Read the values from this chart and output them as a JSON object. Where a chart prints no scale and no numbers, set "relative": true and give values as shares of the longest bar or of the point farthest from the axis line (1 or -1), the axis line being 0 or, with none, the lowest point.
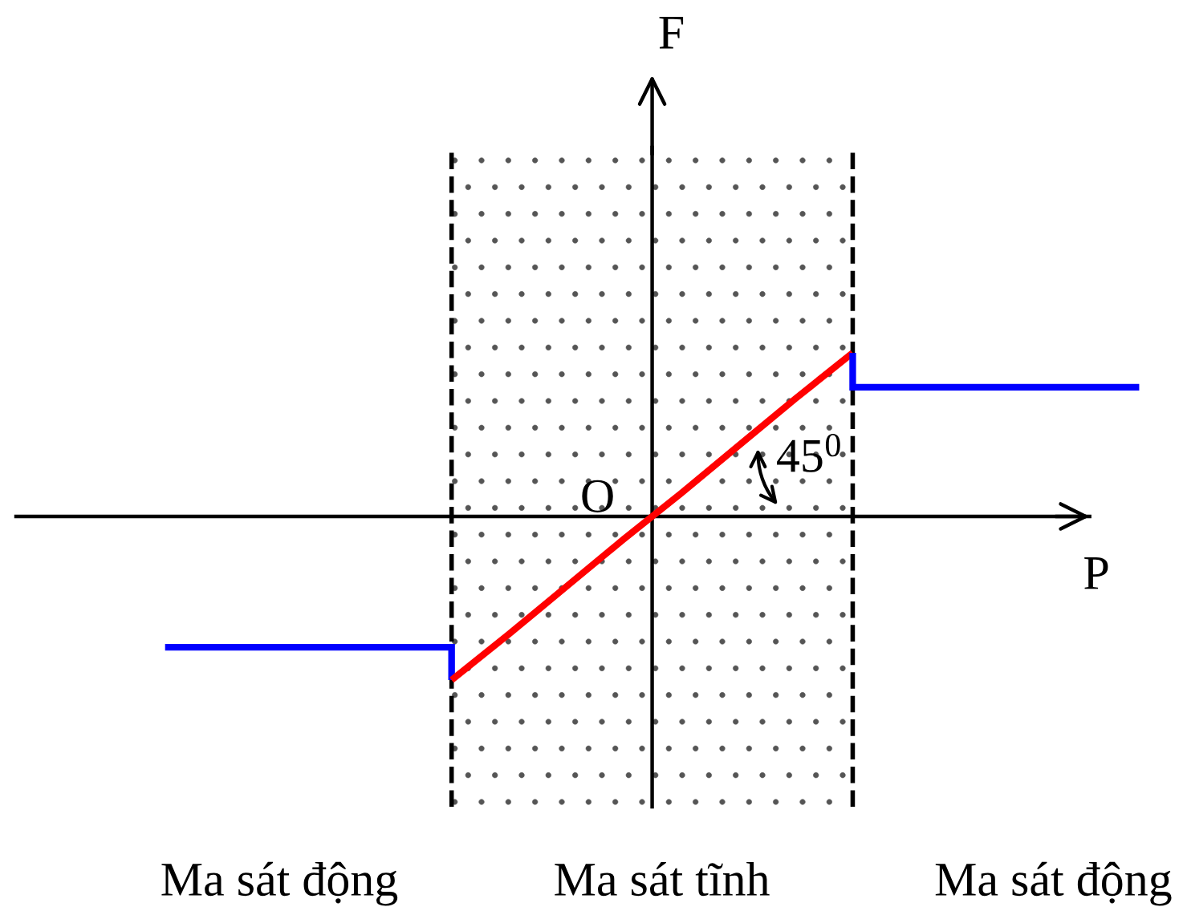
{
  "chart_data": {
    "type": "line",
    "relative": true,
    "xlabel": "P",
    "line_style": "solid",
    "categories": [
      null,
      null,
      null,
      null,
      null,
      null,
      null,
      null,
      null,
      null,
      null,
      null,
      null,
      null,
      null,
      null,
      null,
      null
    ],
    "series": [
      {
        "type": "step",
        "color": "#0000ff",
        "values": [
          -0.8,
          -0.8,
          -0.8,
          -0.8,
          -0.8,
          -1,
          null,
          null,
          null,
          null,
          null,
          null,
          null,
          null,
          null,
          null,
          null,
          null
        ]
      },
      {
        "color": "#ff0000",
        "values": [
          null,
          null,
          null,
          null,
          null,
          -1,
          -0.72,
          -0.43,
          -0.14,
          0.14,
          0.43,
          0.72,
          1,
          null,
          null,
          null,
          null,
          null
        ]
      },
      {
        "type": "step",
        "color": "#0000ff",
        "values": [
          null,
          null,
          null,
          null,
          null,
          null,
          null,
          null,
          null,
          null,
          null,
          null,
          1,
          0.79,
          0.79,
          0.79,
          0.79,
          0.79
        ]
      }
    ],
    "annotations": [
      "F",
      "45$^{0}$",
      "O",
      "Ma sát động",
      "Ma sát tĩnh",
      "Ma sát động"
    ]
  }
}
